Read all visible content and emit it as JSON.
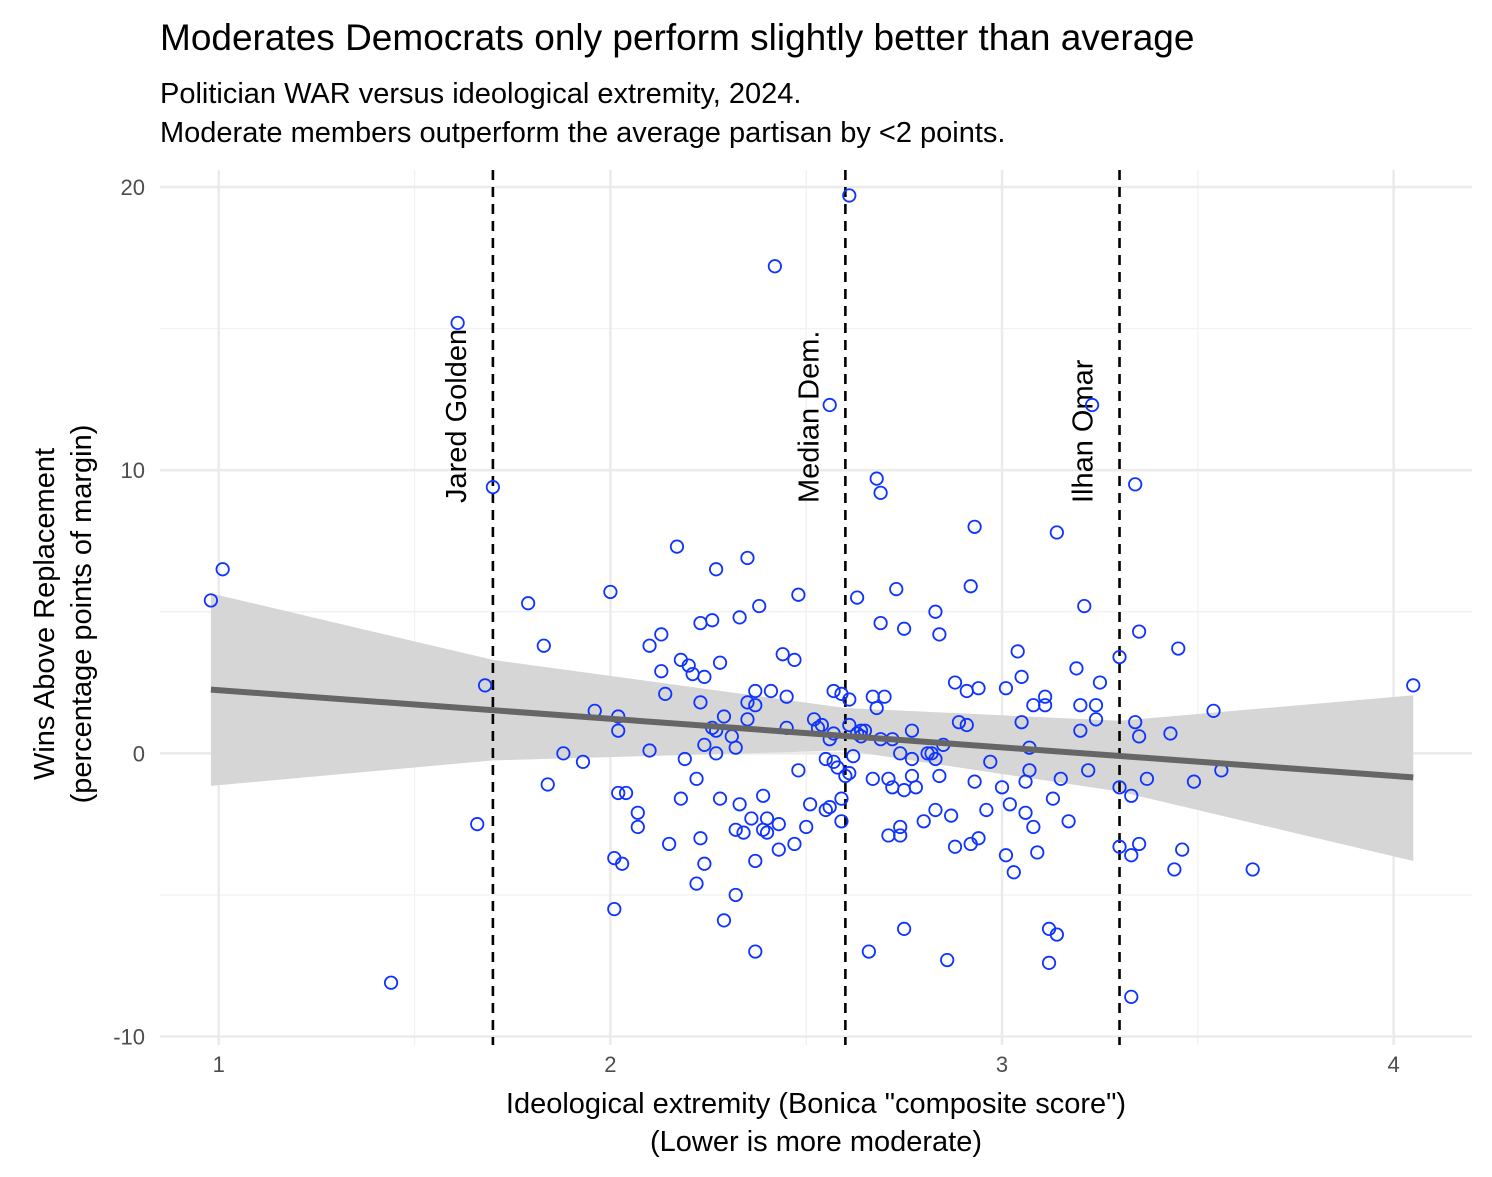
{
  "chart_data": {
    "type": "scatter",
    "title": "Moderates Democrats only perform slightly better than average",
    "subtitle": [
      "Politician WAR versus ideological extremity, 2024.",
      "Moderate members outperform the average partisan by <2 points."
    ],
    "xlabel": [
      "Ideological extremity (Bonica \"composite score\")",
      "(Lower is more moderate)"
    ],
    "ylabel": [
      "Wins Above Replacement",
      "(percentage points of margin)"
    ],
    "xlim": [
      0.85,
      4.2
    ],
    "ylim": [
      -10.3,
      20.6
    ],
    "x_ticks": [
      1,
      2,
      3,
      4
    ],
    "x_tick_labels": [
      "1",
      "2",
      "3",
      "4"
    ],
    "y_ticks": [
      -10,
      0,
      10,
      20
    ],
    "y_tick_labels": [
      "-10",
      "0",
      "10",
      "20"
    ],
    "grid": true,
    "point_color": "#0f34ff",
    "trend_color": "#666666",
    "band_color": "#d6d6d6",
    "reference_lines": [
      {
        "x": 1.7,
        "label": "Jared Golden"
      },
      {
        "x": 2.6,
        "label": "Median Dem."
      },
      {
        "x": 3.3,
        "label": "Ilhan Omar"
      }
    ],
    "trend": {
      "x": [
        0.98,
        4.05
      ],
      "y": [
        2.25,
        -0.85
      ]
    },
    "confidence_band": {
      "x": [
        0.98,
        1.7,
        2.6,
        3.3,
        4.05
      ],
      "upper": [
        5.65,
        3.3,
        1.6,
        1.15,
        2.05
      ],
      "lower": [
        -1.15,
        -0.25,
        0.1,
        -1.35,
        -3.8
      ]
    },
    "points": [
      [
        0.98,
        5.4
      ],
      [
        1.01,
        6.5
      ],
      [
        1.44,
        -8.1
      ],
      [
        1.61,
        15.2
      ],
      [
        1.66,
        -2.5
      ],
      [
        1.68,
        2.4
      ],
      [
        1.7,
        9.4
      ],
      [
        1.79,
        5.3
      ],
      [
        1.83,
        3.8
      ],
      [
        1.84,
        -1.1
      ],
      [
        1.88,
        0.0
      ],
      [
        1.93,
        -0.3
      ],
      [
        1.96,
        1.5
      ],
      [
        2.0,
        5.7
      ],
      [
        2.01,
        -5.5
      ],
      [
        2.01,
        -3.7
      ],
      [
        2.02,
        1.3
      ],
      [
        2.02,
        0.8
      ],
      [
        2.02,
        -1.4
      ],
      [
        2.03,
        -3.9
      ],
      [
        2.04,
        -1.4
      ],
      [
        2.07,
        -2.1
      ],
      [
        2.07,
        -2.6
      ],
      [
        2.1,
        3.8
      ],
      [
        2.1,
        0.1
      ],
      [
        2.13,
        4.2
      ],
      [
        2.13,
        2.9
      ],
      [
        2.14,
        2.1
      ],
      [
        2.15,
        -3.2
      ],
      [
        2.17,
        7.3
      ],
      [
        2.18,
        3.3
      ],
      [
        2.18,
        -1.6
      ],
      [
        2.19,
        -0.2
      ],
      [
        2.2,
        3.1
      ],
      [
        2.21,
        2.8
      ],
      [
        2.22,
        -0.9
      ],
      [
        2.22,
        -4.6
      ],
      [
        2.23,
        4.6
      ],
      [
        2.23,
        -3.0
      ],
      [
        2.23,
        1.8
      ],
      [
        2.24,
        2.7
      ],
      [
        2.24,
        0.3
      ],
      [
        2.24,
        -3.9
      ],
      [
        2.26,
        0.9
      ],
      [
        2.26,
        4.7
      ],
      [
        2.27,
        0.8
      ],
      [
        2.27,
        0.0
      ],
      [
        2.27,
        6.5
      ],
      [
        2.28,
        3.2
      ],
      [
        2.28,
        -1.6
      ],
      [
        2.29,
        1.3
      ],
      [
        2.29,
        -5.9
      ],
      [
        2.31,
        0.6
      ],
      [
        2.32,
        0.2
      ],
      [
        2.32,
        -5.0
      ],
      [
        2.32,
        -2.7
      ],
      [
        2.33,
        4.8
      ],
      [
        2.33,
        -1.8
      ],
      [
        2.34,
        -2.8
      ],
      [
        2.35,
        6.9
      ],
      [
        2.35,
        1.2
      ],
      [
        2.35,
        1.8
      ],
      [
        2.36,
        -2.3
      ],
      [
        2.37,
        2.2
      ],
      [
        2.37,
        1.7
      ],
      [
        2.37,
        -3.8
      ],
      [
        2.37,
        -7.0
      ],
      [
        2.38,
        5.2
      ],
      [
        2.39,
        -1.5
      ],
      [
        2.39,
        -2.7
      ],
      [
        2.4,
        -2.3
      ],
      [
        2.4,
        -2.8
      ],
      [
        2.41,
        2.2
      ],
      [
        2.42,
        17.2
      ],
      [
        2.43,
        -2.5
      ],
      [
        2.43,
        -3.4
      ],
      [
        2.44,
        3.5
      ],
      [
        2.45,
        2.0
      ],
      [
        2.45,
        0.9
      ],
      [
        2.47,
        3.3
      ],
      [
        2.47,
        -3.2
      ],
      [
        2.48,
        5.6
      ],
      [
        2.48,
        -0.6
      ],
      [
        2.5,
        -2.6
      ],
      [
        2.51,
        -1.8
      ],
      [
        2.52,
        1.2
      ],
      [
        2.53,
        0.9
      ],
      [
        2.54,
        1.0
      ],
      [
        2.55,
        -0.2
      ],
      [
        2.55,
        -2.0
      ],
      [
        2.56,
        12.3
      ],
      [
        2.56,
        0.5
      ],
      [
        2.56,
        -1.9
      ],
      [
        2.57,
        2.2
      ],
      [
        2.57,
        -0.3
      ],
      [
        2.57,
        0.7
      ],
      [
        2.58,
        -0.5
      ],
      [
        2.59,
        2.1
      ],
      [
        2.59,
        -1.6
      ],
      [
        2.59,
        -2.4
      ],
      [
        2.6,
        -0.8
      ],
      [
        2.61,
        19.7
      ],
      [
        2.61,
        1.9
      ],
      [
        2.61,
        1.0
      ],
      [
        2.61,
        -0.7
      ],
      [
        2.62,
        -0.1
      ],
      [
        2.63,
        5.5
      ],
      [
        2.63,
        0.7
      ],
      [
        2.64,
        0.8
      ],
      [
        2.64,
        0.6
      ],
      [
        2.65,
        0.8
      ],
      [
        2.66,
        -7.0
      ],
      [
        2.67,
        2.0
      ],
      [
        2.67,
        -0.9
      ],
      [
        2.68,
        9.7
      ],
      [
        2.68,
        1.6
      ],
      [
        2.69,
        9.2
      ],
      [
        2.69,
        4.6
      ],
      [
        2.69,
        0.5
      ],
      [
        2.7,
        2.0
      ],
      [
        2.71,
        -2.9
      ],
      [
        2.71,
        -0.9
      ],
      [
        2.72,
        -1.2
      ],
      [
        2.72,
        0.5
      ],
      [
        2.73,
        5.8
      ],
      [
        2.74,
        -2.6
      ],
      [
        2.74,
        -2.9
      ],
      [
        2.74,
        0.0
      ],
      [
        2.75,
        4.4
      ],
      [
        2.75,
        -6.2
      ],
      [
        2.75,
        -1.3
      ],
      [
        2.77,
        0.8
      ],
      [
        2.77,
        -0.2
      ],
      [
        2.77,
        -0.8
      ],
      [
        2.78,
        -1.2
      ],
      [
        2.8,
        -2.4
      ],
      [
        2.81,
        0.0
      ],
      [
        2.82,
        0.0
      ],
      [
        2.83,
        -2.0
      ],
      [
        2.83,
        -0.2
      ],
      [
        2.83,
        5.0
      ],
      [
        2.84,
        -0.8
      ],
      [
        2.84,
        4.2
      ],
      [
        2.85,
        0.3
      ],
      [
        2.86,
        -7.3
      ],
      [
        2.87,
        -2.2
      ],
      [
        2.88,
        2.5
      ],
      [
        2.88,
        -3.3
      ],
      [
        2.89,
        1.1
      ],
      [
        2.91,
        1.0
      ],
      [
        2.91,
        2.2
      ],
      [
        2.92,
        5.9
      ],
      [
        2.92,
        -3.2
      ],
      [
        2.93,
        -1.0
      ],
      [
        2.93,
        8.0
      ],
      [
        2.94,
        2.3
      ],
      [
        2.94,
        -3.0
      ],
      [
        2.96,
        -2.0
      ],
      [
        2.97,
        -0.3
      ],
      [
        3.0,
        -1.2
      ],
      [
        3.01,
        -3.6
      ],
      [
        3.01,
        2.3
      ],
      [
        3.02,
        -1.8
      ],
      [
        3.03,
        -4.2
      ],
      [
        3.04,
        3.6
      ],
      [
        3.05,
        2.7
      ],
      [
        3.05,
        1.1
      ],
      [
        3.06,
        -1.0
      ],
      [
        3.06,
        -2.1
      ],
      [
        3.07,
        0.2
      ],
      [
        3.07,
        -0.6
      ],
      [
        3.08,
        -2.6
      ],
      [
        3.08,
        1.7
      ],
      [
        3.09,
        -3.5
      ],
      [
        3.11,
        2.0
      ],
      [
        3.11,
        1.7
      ],
      [
        3.12,
        -6.2
      ],
      [
        3.12,
        -7.4
      ],
      [
        3.13,
        -1.6
      ],
      [
        3.14,
        7.8
      ],
      [
        3.14,
        -6.4
      ],
      [
        3.15,
        -0.9
      ],
      [
        3.17,
        -2.4
      ],
      [
        3.19,
        3.0
      ],
      [
        3.2,
        1.7
      ],
      [
        3.2,
        0.8
      ],
      [
        3.21,
        5.2
      ],
      [
        3.22,
        -0.6
      ],
      [
        3.23,
        12.3
      ],
      [
        3.24,
        1.7
      ],
      [
        3.24,
        1.2
      ],
      [
        3.25,
        2.5
      ],
      [
        3.3,
        3.4
      ],
      [
        3.3,
        -1.2
      ],
      [
        3.3,
        -3.3
      ],
      [
        3.33,
        -8.6
      ],
      [
        3.33,
        -1.5
      ],
      [
        3.33,
        -3.6
      ],
      [
        3.34,
        9.5
      ],
      [
        3.34,
        1.1
      ],
      [
        3.35,
        4.3
      ],
      [
        3.35,
        0.6
      ],
      [
        3.35,
        -3.2
      ],
      [
        3.37,
        -0.9
      ],
      [
        3.43,
        0.7
      ],
      [
        3.44,
        -4.1
      ],
      [
        3.45,
        3.7
      ],
      [
        3.46,
        -3.4
      ],
      [
        3.49,
        -1.0
      ],
      [
        3.54,
        1.5
      ],
      [
        3.56,
        -0.6
      ],
      [
        3.64,
        -4.1
      ],
      [
        4.05,
        2.4
      ]
    ]
  }
}
